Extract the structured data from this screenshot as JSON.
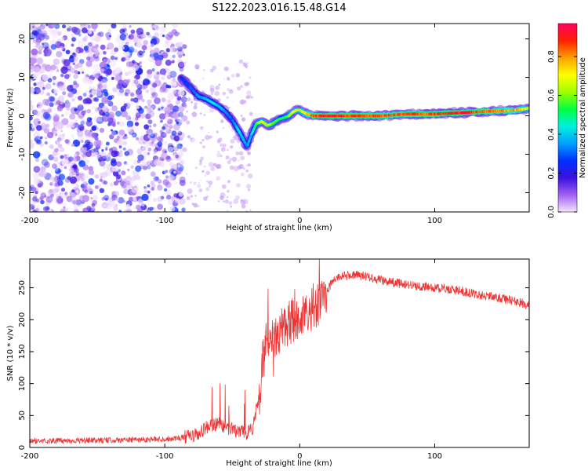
{
  "figure_title": "S122.2023.016.15.48.G14",
  "chart_data": [
    {
      "type": "heatmap",
      "title": "S122.2023.016.15.48.G14",
      "xlabel": "Height of straight line (km)",
      "ylabel": "Frequency (Hz)",
      "xlim": [
        -200,
        170
      ],
      "ylim": [
        -25,
        24
      ],
      "xticks": [
        -200,
        -100,
        0,
        100
      ],
      "yticks": [
        -20,
        -10,
        0,
        10,
        20
      ],
      "colorbar": {
        "label": "Normalized spectral amplitude",
        "range": [
          0.0,
          0.97
        ],
        "ticks": [
          0.0,
          0.2,
          0.4,
          0.6,
          0.8
        ],
        "colormap": [
          "#f5e6ff",
          "#a060f0",
          "#3a10e0",
          "#0030ff",
          "#00a0ff",
          "#00f0e0",
          "#00ff40",
          "#a0ff00",
          "#ffff00",
          "#ffa000",
          "#ff2000",
          "#ff0060"
        ]
      },
      "noise_region_x": [
        -200,
        -85
      ],
      "ridge": {
        "x": [
          -88,
          -80,
          -75,
          -70,
          -65,
          -60,
          -55,
          -50,
          -45,
          -42,
          -39,
          -36,
          -32,
          -28,
          -24,
          -20,
          -16,
          -12,
          -8,
          -5,
          -2,
          0,
          5,
          10,
          20,
          40,
          60,
          80,
          100,
          120,
          140,
          160,
          170
        ],
        "freq": [
          10,
          7,
          5,
          4.5,
          3.5,
          2.5,
          1,
          -1,
          -4,
          -6,
          -8,
          -5,
          -2,
          -1.5,
          -2.5,
          -2,
          -1,
          -0.5,
          0,
          1,
          1.5,
          1.5,
          0.5,
          0,
          0,
          0,
          0,
          0.5,
          0.5,
          0.8,
          1.2,
          1.5,
          2
        ],
        "amplitude": [
          0.25,
          0.3,
          0.35,
          0.4,
          0.45,
          0.4,
          0.35,
          0.3,
          0.45,
          0.4,
          0.35,
          0.4,
          0.55,
          0.7,
          0.65,
          0.6,
          0.55,
          0.5,
          0.6,
          0.7,
          0.7,
          0.65,
          0.75,
          0.88,
          0.9,
          0.9,
          0.85,
          0.85,
          0.88,
          0.92,
          0.85,
          0.8,
          0.7
        ]
      }
    },
    {
      "type": "line",
      "xlabel": "Height of straight line (km)",
      "ylabel": "SNR (10 * v/v)",
      "xlim": [
        -200,
        170
      ],
      "ylim": [
        0,
        295
      ],
      "xticks": [
        -200,
        -100,
        0,
        100
      ],
      "yticks": [
        0,
        50,
        100,
        150,
        200,
        250
      ],
      "line_color": "#ee3333",
      "series": [
        {
          "name": "SNR",
          "x": [
            -200,
            -150,
            -100,
            -85,
            -75,
            -70,
            -65,
            -60,
            -55,
            -50,
            -45,
            -40,
            -35,
            -30,
            -28,
            -25,
            -20,
            -15,
            -10,
            -5,
            0,
            5,
            10,
            15,
            20,
            25,
            30,
            40,
            50,
            60,
            70,
            80,
            90,
            100,
            110,
            120,
            130,
            140,
            150,
            160,
            170
          ],
          "y": [
            10,
            11,
            13,
            16,
            20,
            30,
            35,
            38,
            32,
            28,
            25,
            22,
            30,
            80,
            130,
            160,
            175,
            180,
            190,
            200,
            205,
            210,
            215,
            225,
            245,
            262,
            268,
            270,
            268,
            262,
            258,
            255,
            252,
            250,
            248,
            245,
            240,
            237,
            233,
            229,
            222
          ]
        }
      ]
    }
  ]
}
